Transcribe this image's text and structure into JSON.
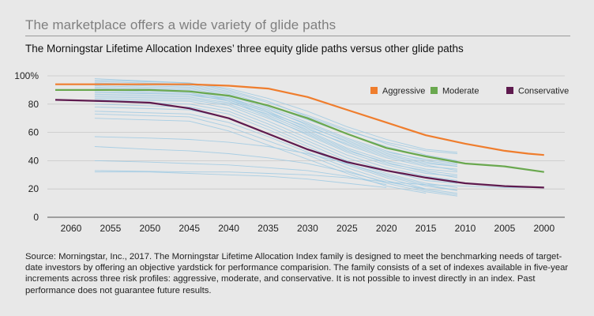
{
  "header": {
    "title": "The marketplace offers a wide variety of glide paths",
    "subtitle": "The Morningstar Lifetime Allocation Indexes’ three equity glide paths versus other glide paths"
  },
  "footnote": "Source: Morningstar, Inc., 2017. The Morningstar Lifetime Allocation Index family is designed to meet the benchmarking needs of target-date investors by offering an objective yardstick for performance comparision. The family consists of a set of indexes available in five-year increments across three risk profiles: aggressive, moderate, and conservative. It is not possible to invest directly in an index. Past performance does not guarantee future results.",
  "chart_data": {
    "type": "line",
    "title": "",
    "xlabel": "",
    "ylabel": "",
    "x_categories": [
      "2060",
      "2055",
      "2050",
      "2045",
      "2040",
      "2035",
      "2030",
      "2025",
      "2020",
      "2015",
      "2010",
      "2005",
      "2000"
    ],
    "x_reversed": true,
    "y_ticks": [
      "100%",
      "80",
      "60",
      "40",
      "20",
      "0"
    ],
    "ylim": [
      0,
      100
    ],
    "grid": "horizontal",
    "legend_position": "top-right",
    "series": [
      {
        "name": "Aggressive",
        "color": "#ef7d2d",
        "points": [
          [
            2062,
            94
          ],
          [
            2055,
            94
          ],
          [
            2050,
            94
          ],
          [
            2045,
            94
          ],
          [
            2040,
            93
          ],
          [
            2035,
            91
          ],
          [
            2030,
            85
          ],
          [
            2025,
            76
          ],
          [
            2020,
            67
          ],
          [
            2015,
            58
          ],
          [
            2010,
            52
          ],
          [
            2005,
            47
          ],
          [
            2002,
            45
          ],
          [
            2000,
            44
          ]
        ]
      },
      {
        "name": "Moderate",
        "color": "#6aa84f",
        "points": [
          [
            2062,
            90
          ],
          [
            2055,
            90
          ],
          [
            2050,
            90
          ],
          [
            2045,
            89
          ],
          [
            2040,
            86
          ],
          [
            2035,
            79
          ],
          [
            2030,
            70
          ],
          [
            2025,
            59
          ],
          [
            2020,
            49
          ],
          [
            2015,
            43
          ],
          [
            2010,
            38
          ],
          [
            2005,
            36
          ],
          [
            2000,
            32
          ]
        ]
      },
      {
        "name": "Conservative",
        "color": "#5e1a4e",
        "points": [
          [
            2062,
            83
          ],
          [
            2055,
            82
          ],
          [
            2050,
            81
          ],
          [
            2045,
            77
          ],
          [
            2040,
            70
          ],
          [
            2035,
            59
          ],
          [
            2030,
            48
          ],
          [
            2025,
            39
          ],
          [
            2020,
            33
          ],
          [
            2015,
            28
          ],
          [
            2010,
            24
          ],
          [
            2005,
            22
          ],
          [
            2000,
            21
          ]
        ]
      }
    ],
    "other_paths": {
      "color": "#9cc9e3",
      "lines": [
        [
          [
            2057,
            98
          ],
          [
            2045,
            95
          ],
          [
            2040,
            91
          ],
          [
            2035,
            84
          ],
          [
            2030,
            75
          ],
          [
            2025,
            64
          ],
          [
            2020,
            55
          ],
          [
            2015,
            48
          ],
          [
            2011,
            46
          ]
        ],
        [
          [
            2057,
            97
          ],
          [
            2045,
            95
          ],
          [
            2040,
            90
          ],
          [
            2035,
            82
          ],
          [
            2030,
            71
          ],
          [
            2025,
            61
          ],
          [
            2020,
            53
          ],
          [
            2015,
            47
          ],
          [
            2011,
            45
          ]
        ],
        [
          [
            2057,
            96
          ],
          [
            2045,
            94
          ],
          [
            2040,
            89
          ],
          [
            2035,
            81
          ],
          [
            2030,
            72
          ],
          [
            2025,
            62
          ],
          [
            2020,
            52
          ],
          [
            2015,
            44
          ],
          [
            2011,
            40
          ]
        ],
        [
          [
            2057,
            95
          ],
          [
            2045,
            93
          ],
          [
            2040,
            88
          ],
          [
            2035,
            79
          ],
          [
            2030,
            69
          ],
          [
            2025,
            59
          ],
          [
            2020,
            50
          ],
          [
            2015,
            43
          ],
          [
            2011,
            39
          ]
        ],
        [
          [
            2057,
            94
          ],
          [
            2045,
            92
          ],
          [
            2040,
            87
          ],
          [
            2035,
            78
          ],
          [
            2030,
            67
          ],
          [
            2025,
            56
          ],
          [
            2020,
            47
          ],
          [
            2015,
            40
          ],
          [
            2011,
            37
          ]
        ],
        [
          [
            2057,
            93
          ],
          [
            2045,
            91
          ],
          [
            2040,
            86
          ],
          [
            2035,
            77
          ],
          [
            2030,
            65
          ],
          [
            2025,
            53
          ],
          [
            2020,
            44
          ],
          [
            2015,
            38
          ],
          [
            2011,
            36
          ]
        ],
        [
          [
            2057,
            92
          ],
          [
            2045,
            90
          ],
          [
            2040,
            85
          ],
          [
            2035,
            75
          ],
          [
            2030,
            63
          ],
          [
            2025,
            51
          ],
          [
            2020,
            42
          ],
          [
            2015,
            36
          ],
          [
            2011,
            34
          ]
        ],
        [
          [
            2057,
            91
          ],
          [
            2045,
            89
          ],
          [
            2040,
            84
          ],
          [
            2035,
            74
          ],
          [
            2030,
            61
          ],
          [
            2025,
            49
          ],
          [
            2020,
            40
          ],
          [
            2015,
            34
          ],
          [
            2011,
            32
          ]
        ],
        [
          [
            2057,
            90
          ],
          [
            2045,
            88
          ],
          [
            2040,
            83
          ],
          [
            2035,
            72
          ],
          [
            2030,
            60
          ],
          [
            2025,
            48
          ],
          [
            2020,
            38
          ],
          [
            2015,
            33
          ],
          [
            2011,
            30
          ]
        ],
        [
          [
            2057,
            89
          ],
          [
            2045,
            87
          ],
          [
            2040,
            82
          ],
          [
            2035,
            71
          ],
          [
            2030,
            58
          ],
          [
            2025,
            46
          ],
          [
            2020,
            37
          ],
          [
            2015,
            31
          ],
          [
            2011,
            29
          ]
        ],
        [
          [
            2057,
            88
          ],
          [
            2045,
            87
          ],
          [
            2040,
            84
          ],
          [
            2035,
            76
          ],
          [
            2030,
            66
          ],
          [
            2025,
            55
          ],
          [
            2020,
            46
          ],
          [
            2015,
            41
          ],
          [
            2011,
            38
          ]
        ],
        [
          [
            2057,
            87
          ],
          [
            2045,
            86
          ],
          [
            2040,
            83
          ],
          [
            2035,
            74
          ],
          [
            2030,
            64
          ],
          [
            2025,
            54
          ],
          [
            2020,
            45
          ],
          [
            2015,
            39
          ],
          [
            2011,
            36
          ]
        ],
        [
          [
            2057,
            86
          ],
          [
            2045,
            85
          ],
          [
            2040,
            81
          ],
          [
            2035,
            73
          ],
          [
            2030,
            62
          ],
          [
            2025,
            52
          ],
          [
            2020,
            43
          ],
          [
            2015,
            37
          ],
          [
            2011,
            33
          ]
        ],
        [
          [
            2057,
            85
          ],
          [
            2045,
            84
          ],
          [
            2040,
            80
          ],
          [
            2035,
            70
          ],
          [
            2030,
            59
          ],
          [
            2025,
            47
          ],
          [
            2020,
            39
          ],
          [
            2015,
            32
          ],
          [
            2011,
            28
          ]
        ],
        [
          [
            2057,
            84
          ],
          [
            2045,
            83
          ],
          [
            2040,
            79
          ],
          [
            2035,
            68
          ],
          [
            2030,
            56
          ],
          [
            2025,
            44
          ],
          [
            2020,
            35
          ],
          [
            2015,
            29
          ],
          [
            2011,
            26
          ]
        ],
        [
          [
            2057,
            83
          ],
          [
            2045,
            82
          ],
          [
            2040,
            77
          ],
          [
            2035,
            66
          ],
          [
            2030,
            54
          ],
          [
            2025,
            42
          ],
          [
            2020,
            33
          ],
          [
            2015,
            26
          ],
          [
            2011,
            24
          ]
        ],
        [
          [
            2057,
            82
          ],
          [
            2045,
            80
          ],
          [
            2040,
            75
          ],
          [
            2035,
            64
          ],
          [
            2030,
            52
          ],
          [
            2025,
            40
          ],
          [
            2020,
            31
          ],
          [
            2015,
            24
          ],
          [
            2011,
            21
          ]
        ],
        [
          [
            2057,
            80
          ],
          [
            2045,
            78
          ],
          [
            2040,
            73
          ],
          [
            2035,
            62
          ],
          [
            2030,
            50
          ],
          [
            2025,
            38
          ],
          [
            2020,
            29
          ],
          [
            2015,
            22
          ],
          [
            2011,
            19
          ]
        ],
        [
          [
            2057,
            78
          ],
          [
            2045,
            76
          ],
          [
            2040,
            70
          ],
          [
            2035,
            59
          ],
          [
            2030,
            48
          ],
          [
            2025,
            37
          ],
          [
            2020,
            28
          ],
          [
            2015,
            20
          ],
          [
            2011,
            17
          ]
        ],
        [
          [
            2057,
            75
          ],
          [
            2045,
            73
          ],
          [
            2040,
            67
          ],
          [
            2035,
            57
          ],
          [
            2030,
            46
          ],
          [
            2025,
            35
          ],
          [
            2020,
            26
          ],
          [
            2015,
            19
          ],
          [
            2011,
            16
          ]
        ],
        [
          [
            2057,
            73
          ],
          [
            2045,
            71
          ],
          [
            2040,
            64
          ],
          [
            2035,
            54
          ],
          [
            2030,
            44
          ],
          [
            2025,
            33
          ],
          [
            2020,
            24
          ],
          [
            2015,
            18
          ],
          [
            2011,
            15
          ]
        ],
        [
          [
            2057,
            70
          ],
          [
            2045,
            68
          ],
          [
            2040,
            61
          ],
          [
            2035,
            51
          ],
          [
            2030,
            41
          ],
          [
            2025,
            31
          ],
          [
            2020,
            22
          ],
          [
            2015,
            17
          ]
        ],
        [
          [
            2057,
            57
          ],
          [
            2050,
            56
          ],
          [
            2045,
            55
          ],
          [
            2040,
            53
          ],
          [
            2035,
            50
          ],
          [
            2030,
            45
          ],
          [
            2025,
            38
          ],
          [
            2020,
            30
          ],
          [
            2015,
            23
          ],
          [
            2011,
            19
          ]
        ],
        [
          [
            2057,
            50
          ],
          [
            2050,
            48
          ],
          [
            2045,
            47
          ],
          [
            2040,
            45
          ],
          [
            2035,
            42
          ],
          [
            2030,
            38
          ],
          [
            2025,
            32
          ],
          [
            2020,
            25
          ],
          [
            2015,
            20
          ]
        ],
        [
          [
            2057,
            40
          ],
          [
            2050,
            39
          ],
          [
            2045,
            38
          ],
          [
            2040,
            37
          ],
          [
            2035,
            35
          ],
          [
            2030,
            33
          ],
          [
            2025,
            29
          ],
          [
            2020,
            23
          ]
        ],
        [
          [
            2057,
            33
          ],
          [
            2045,
            32
          ],
          [
            2040,
            32
          ],
          [
            2035,
            31
          ],
          [
            2030,
            30
          ],
          [
            2025,
            28
          ],
          [
            2020,
            25
          ],
          [
            2015,
            23
          ],
          [
            2010,
            22
          ],
          [
            2005,
            21
          ],
          [
            2002,
            21
          ]
        ],
        [
          [
            2057,
            32
          ],
          [
            2050,
            32
          ],
          [
            2045,
            31
          ],
          [
            2040,
            30
          ],
          [
            2035,
            29
          ],
          [
            2030,
            27
          ],
          [
            2025,
            24
          ],
          [
            2020,
            21
          ]
        ]
      ]
    }
  }
}
